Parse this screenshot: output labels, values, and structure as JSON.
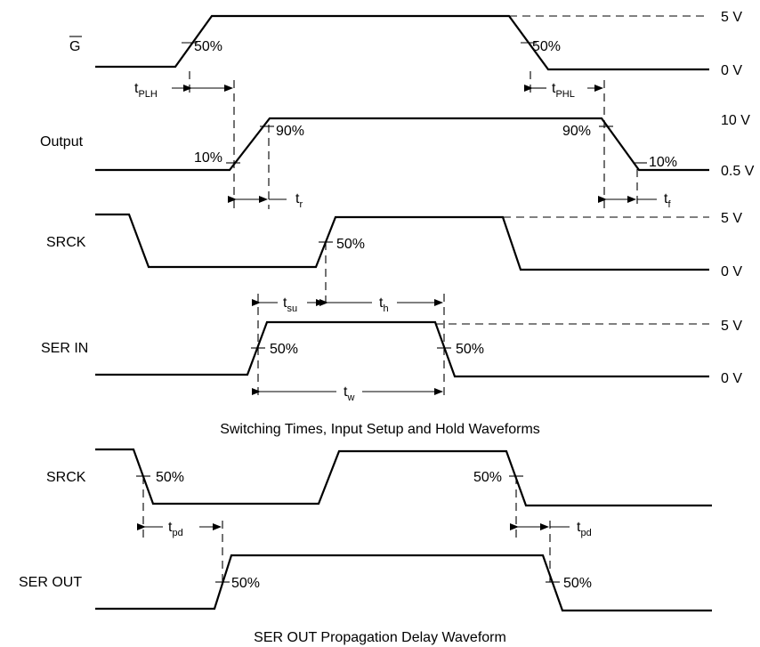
{
  "signals": {
    "g": "G",
    "output": "Output",
    "srck": "SRCK",
    "ser_in": "SER IN",
    "srck2": "SRCK",
    "ser_out": "SER OUT"
  },
  "levels": {
    "g_high": "5 V",
    "g_low": "0 V",
    "out_high": "10 V",
    "out_low": "0.5 V",
    "srck_high": "5 V",
    "srck_low": "0 V",
    "serin_high": "5 V",
    "serin_low": "0 V"
  },
  "percents": {
    "p50": "50%",
    "p90": "90%",
    "p10": "10%"
  },
  "timing": {
    "t": "t",
    "plh": "PLH",
    "phl": "PHL",
    "r": "r",
    "f": "f",
    "su": "su",
    "h": "h",
    "w": "w",
    "pd": "pd"
  },
  "captions": {
    "switching": "Switching Times, Input Setup and Hold Waveforms",
    "propagation": "SER OUT Propagation Delay Waveform"
  }
}
